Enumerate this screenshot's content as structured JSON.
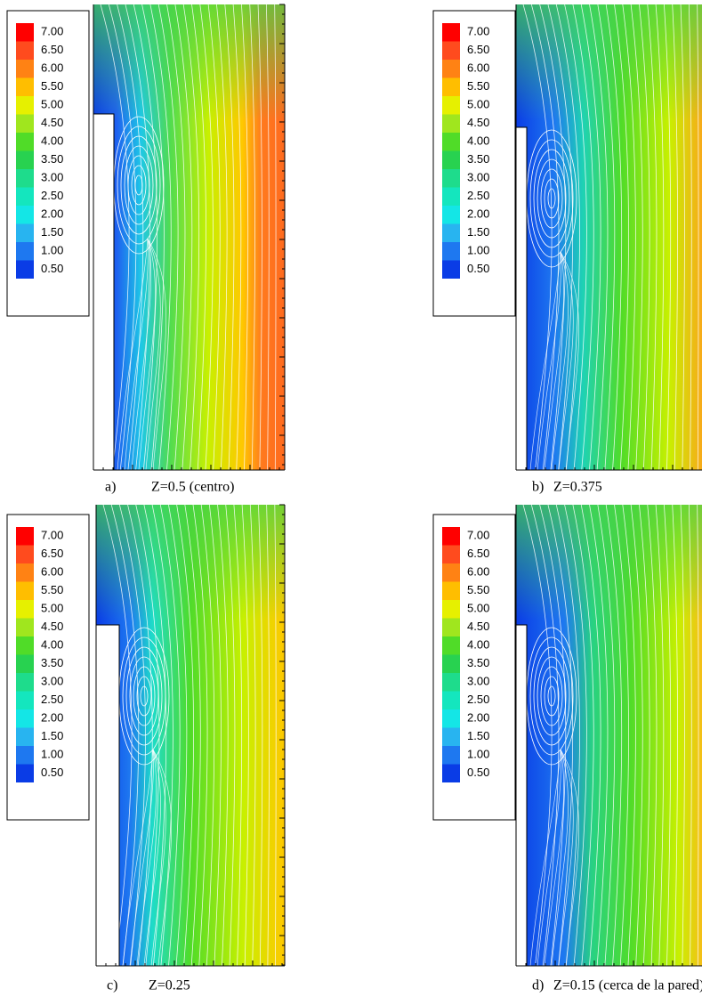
{
  "panels": [
    {
      "legend": [
        "7.00",
        "6.50",
        "6.00",
        "5.50",
        "5.00",
        "4.50",
        "4.00",
        "3.50",
        "3.00",
        "2.50",
        "2.00",
        "1.50",
        "1.00",
        "0.50"
      ],
      "label": "a)",
      "caption": "Z=0.5 (centro)"
    },
    {
      "legend": [
        "7.00",
        "6.50",
        "6.00",
        "5.50",
        "5.00",
        "4.50",
        "4.00",
        "3.50",
        "3.00",
        "2.50",
        "2.00",
        "1.50",
        "1.00",
        "0.50"
      ],
      "label": "b)",
      "caption": "Z=0.375"
    },
    {
      "legend": [
        "7.00",
        "6.50",
        "6.00",
        "5.50",
        "5.00",
        "4.50",
        "4.00",
        "3.50",
        "3.00",
        "2.50",
        "2.00",
        "1.50",
        "1.00",
        "0.50"
      ],
      "label": "c)",
      "caption": "Z=0.25"
    },
    {
      "legend": [
        "7.00",
        "6.50",
        "6.00",
        "5.50",
        "5.00",
        "4.50",
        "4.00",
        "3.50",
        "3.00",
        "2.50",
        "2.00",
        "1.50",
        "1.00",
        "0.50"
      ],
      "label": "d)",
      "caption": "Z=0.15 (cerca de la pared)"
    }
  ]
}
